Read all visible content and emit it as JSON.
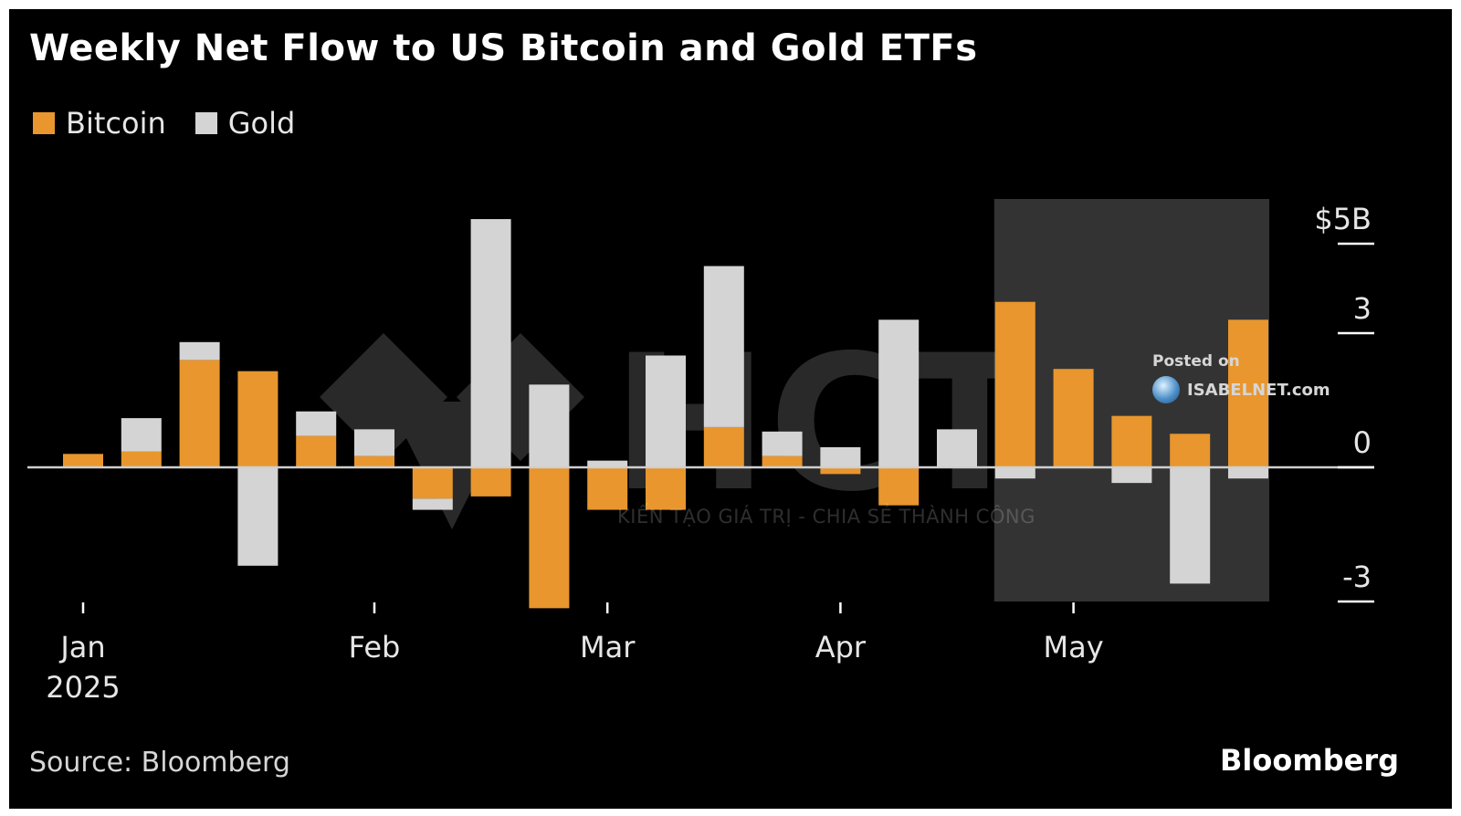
{
  "chart_data": {
    "type": "bar",
    "title": "Weekly Net Flow to US Bitcoin and Gold ETFs",
    "legend": {
      "position": "top-left"
    },
    "grid": false,
    "y_axis": {
      "side": "right",
      "ylim": [
        -3,
        5
      ],
      "ticks": [
        {
          "value": 5,
          "label": "$5B"
        },
        {
          "value": 3,
          "label": "3"
        },
        {
          "value": 0,
          "label": "0"
        },
        {
          "value": -3,
          "label": "-3"
        }
      ]
    },
    "x_axis": {
      "ticks": [
        {
          "week": 1,
          "label": "Jan",
          "sublabel": "2025"
        },
        {
          "week": 6,
          "label": "Feb",
          "sublabel": ""
        },
        {
          "week": 10,
          "label": "Mar",
          "sublabel": ""
        },
        {
          "week": 14,
          "label": "Apr",
          "sublabel": ""
        },
        {
          "week": 18,
          "label": "May",
          "sublabel": ""
        }
      ]
    },
    "highlight_range": {
      "from_week": 17,
      "to_week": 21
    },
    "weeks": [
      1,
      2,
      3,
      4,
      5,
      6,
      7,
      8,
      9,
      10,
      11,
      12,
      13,
      14,
      15,
      16,
      17,
      18,
      19,
      20,
      21
    ],
    "series": [
      {
        "name": "Bitcoin",
        "color": "#e8962d",
        "values": [
          0.3,
          0.35,
          2.4,
          2.15,
          0.7,
          0.25,
          -0.7,
          -0.65,
          -3.15,
          -0.95,
          -0.95,
          0.9,
          0.25,
          -0.15,
          -0.85,
          0,
          3.7,
          2.2,
          1.15,
          0.75,
          3.3
        ]
      },
      {
        "name": "Gold",
        "color": "#d4d4d4",
        "values": [
          0,
          0.75,
          0.4,
          -2.2,
          0.55,
          0.6,
          -0.25,
          5.55,
          1.85,
          0.15,
          2.5,
          3.6,
          0.55,
          0.45,
          3.3,
          0.85,
          -0.25,
          0,
          -0.35,
          -2.6,
          -0.25
        ]
      }
    ]
  },
  "source": "Source: Bloomberg",
  "brand": "Bloomberg",
  "watermark": {
    "posted_on": "Posted on",
    "site": "ISABELNET.com",
    "hct_logo_text": "HCT",
    "hct_tagline": "KIẾN TẠO GIÁ TRỊ - CHIA SẺ THÀNH CÔNG"
  },
  "colors": {
    "background": "#000000",
    "bitcoin": "#e8962d",
    "gold": "#d4d4d4",
    "highlight": "#333333",
    "axis": "#cfcfcf"
  }
}
